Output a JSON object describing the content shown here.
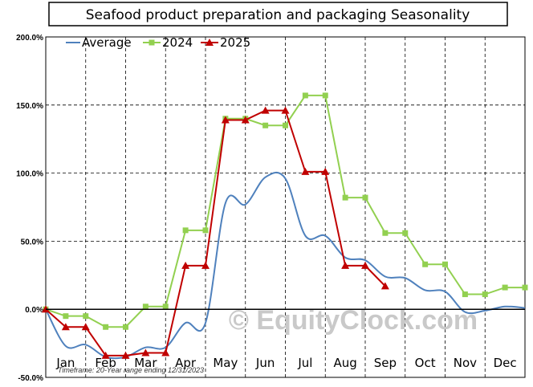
{
  "chart_data": {
    "type": "line",
    "title": "Seafood product preparation and packaging  Seasonality",
    "xlabel": "",
    "ylabel": "",
    "ylim": [
      -50,
      200
    ],
    "y_ticks": [
      -50,
      0,
      50,
      100,
      150,
      200
    ],
    "y_tick_labels": [
      "-50.0%",
      "0.0%",
      "50.0%",
      "100.0%",
      "150.0%",
      "200.0%"
    ],
    "x_ticks": [
      "Jan",
      "Feb",
      "Mar",
      "Apr",
      "May",
      "Jun",
      "Jul",
      "Aug",
      "Sep",
      "Oct",
      "Nov",
      "Dec"
    ],
    "x_domain": [
      0,
      12
    ],
    "grid": "horizontal and vertical dashed",
    "legend": "top-left",
    "series": [
      {
        "name": "Average",
        "color": "#4f81bd",
        "marker": "none",
        "smooth": true,
        "x": [
          0,
          0.5,
          1,
          1.5,
          2,
          2.5,
          3,
          3.5,
          4,
          4.5,
          5,
          5.5,
          6,
          6.5,
          7,
          7.5,
          8,
          8.5,
          9,
          9.5,
          10,
          10.5,
          11,
          11.5,
          12
        ],
        "values": [
          0,
          -27,
          -26,
          -35,
          -35,
          -28,
          -28,
          -10,
          -10,
          78,
          77,
          97,
          96,
          54,
          54,
          38,
          36,
          24,
          23,
          14,
          13,
          -2,
          -1,
          2,
          1
        ]
      },
      {
        "name": "2024",
        "color": "#92d050",
        "marker": "square",
        "smooth": false,
        "x": [
          0,
          0.5,
          1,
          1.5,
          2,
          2.5,
          3,
          3.5,
          4,
          4.5,
          5,
          5.5,
          6,
          6.5,
          7,
          7.5,
          8,
          8.5,
          9,
          9.5,
          10,
          10.5,
          11,
          11.5,
          12
        ],
        "values": [
          0,
          -5,
          -5,
          -13,
          -13,
          2,
          2,
          58,
          58,
          140,
          140,
          135,
          135,
          157,
          157,
          82,
          82,
          56,
          56,
          33,
          33,
          11,
          11,
          16,
          16
        ]
      },
      {
        "name": "2025",
        "color": "#c00000",
        "marker": "triangle",
        "smooth": false,
        "x": [
          0,
          0.5,
          1,
          1.5,
          2,
          2.5,
          3,
          3.5,
          4,
          4.5,
          5,
          5.5,
          6,
          6.5,
          7,
          7.5,
          8,
          8.5
        ],
        "values": [
          0,
          -13,
          -13,
          -34,
          -34,
          -32,
          -32,
          32,
          32,
          139,
          139,
          146,
          146,
          101,
          101,
          32,
          32,
          17
        ]
      }
    ],
    "footnote": "Timeframe: 20-Year range ending 12/31/2023",
    "watermark": "© EquityClock.com"
  }
}
